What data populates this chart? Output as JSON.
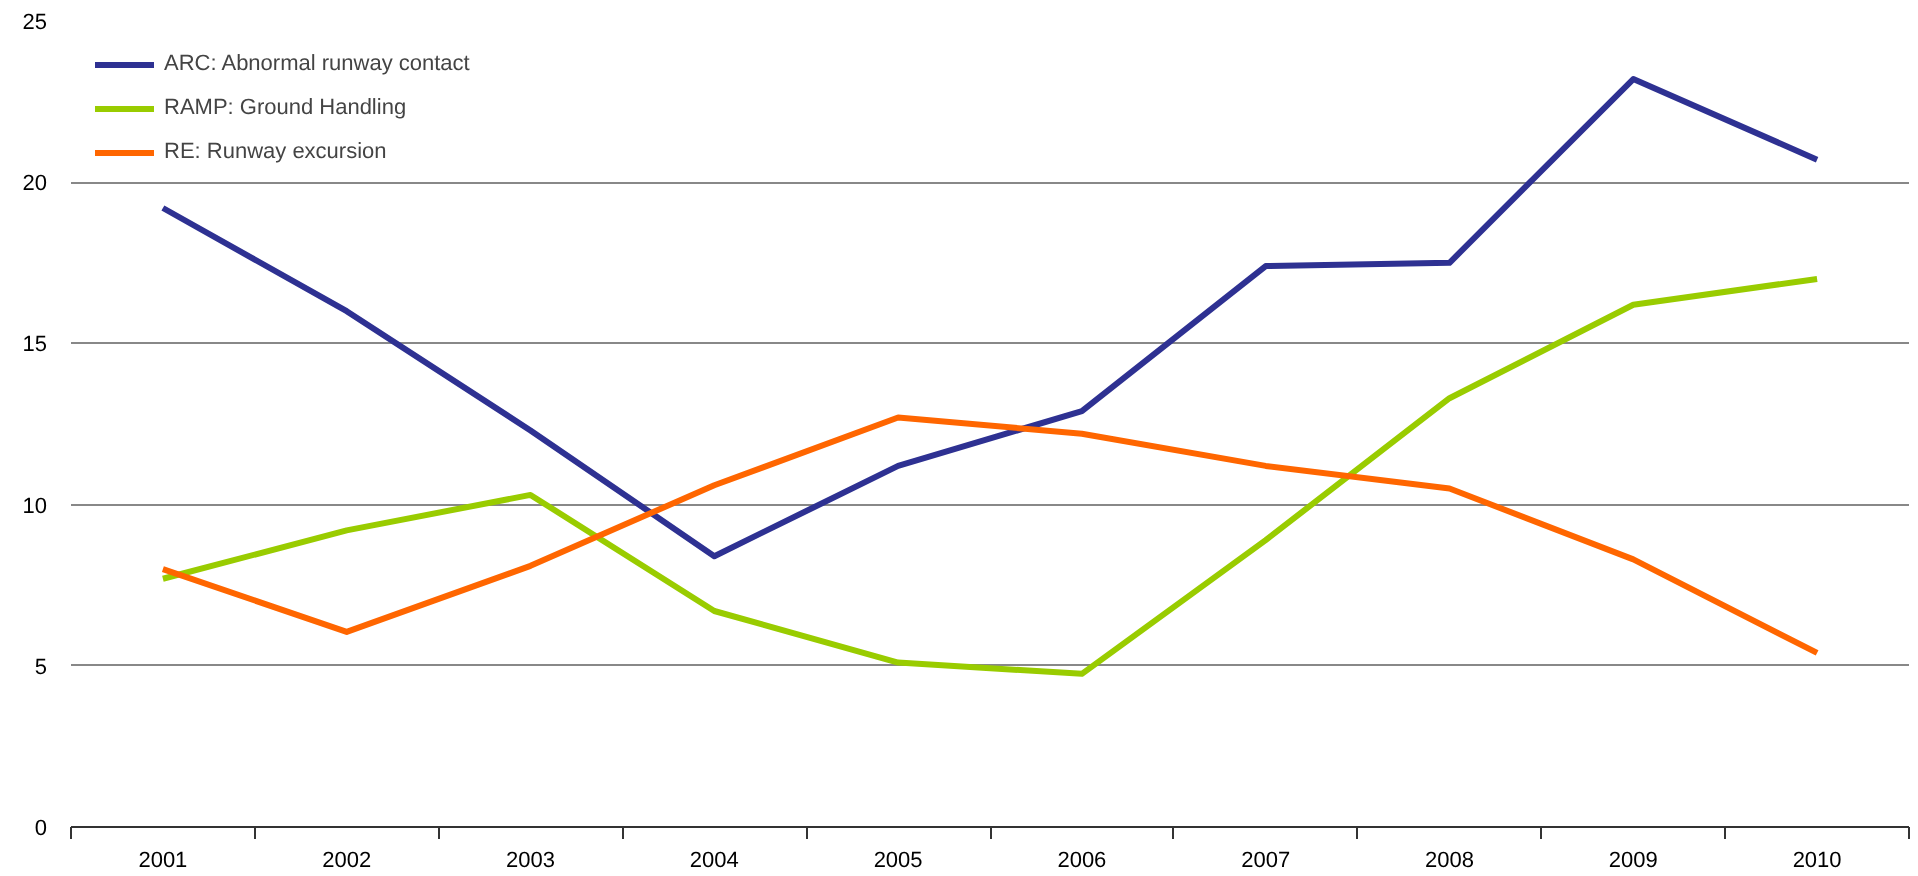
{
  "chart_data": {
    "type": "line",
    "categories": [
      "2001",
      "2002",
      "2003",
      "2004",
      "2005",
      "2006",
      "2007",
      "2008",
      "2009",
      "2010"
    ],
    "series": [
      {
        "name": "ARC: Abnormal runway contact",
        "color": "#2e3192",
        "values": [
          19.2,
          16.0,
          12.3,
          8.4,
          11.2,
          12.9,
          17.4,
          17.5,
          23.2,
          20.7
        ]
      },
      {
        "name": "RAMP: Ground Handling",
        "color": "#99cc00",
        "values": [
          7.7,
          9.2,
          10.3,
          6.7,
          5.1,
          4.75,
          8.9,
          13.3,
          16.2,
          17.0
        ]
      },
      {
        "name": "RE: Runway excursion",
        "color": "#ff6600",
        "values": [
          8.0,
          6.05,
          8.1,
          10.6,
          12.7,
          12.2,
          11.2,
          10.5,
          8.3,
          5.4
        ]
      }
    ],
    "ylim": [
      0,
      25
    ],
    "yticks": [
      0,
      5,
      10,
      15,
      20,
      25
    ],
    "grid": "y",
    "legend": "top left",
    "marker": "none",
    "line_style": "solid"
  }
}
